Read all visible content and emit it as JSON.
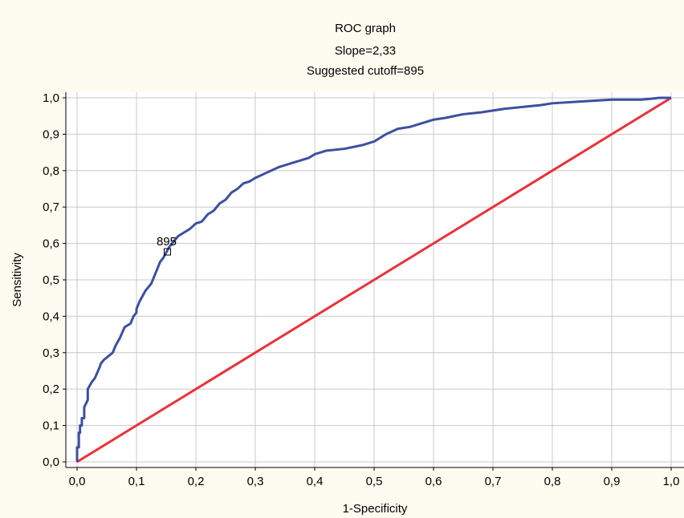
{
  "chart_data": {
    "type": "line",
    "title": "ROC graph",
    "subtitle_lines": [
      "Slope=2,33",
      "Suggested cutoff=895"
    ],
    "xlabel": "1-Specificity",
    "ylabel": "Sensitivity",
    "xlim": [
      0.0,
      1.0
    ],
    "ylim": [
      0.0,
      1.0
    ],
    "x_ticks": [
      "0,0",
      "0,1",
      "0,2",
      "0,3",
      "0,4",
      "0,5",
      "0,6",
      "0,7",
      "0,8",
      "0,9",
      "1,0"
    ],
    "y_ticks": [
      "0,0",
      "0,1",
      "0,2",
      "0,3",
      "0,4",
      "0,5",
      "0,6",
      "0,7",
      "0,8",
      "0,9",
      "1,0"
    ],
    "grid": true,
    "colors": {
      "background": "#fefcf0",
      "plot_area": "#ffffff",
      "grid": "#c8c8c8",
      "roc_curve": "#3c4fa0",
      "reference_line": "#e8323a",
      "marker": "#000000"
    },
    "series": [
      {
        "x": [
          0.0,
          0.0,
          0.003,
          0.003,
          0.005,
          0.005,
          0.008,
          0.008,
          0.012,
          0.012,
          0.018,
          0.018,
          0.025,
          0.03,
          0.038,
          0.04,
          0.045,
          0.06,
          0.065,
          0.072,
          0.08,
          0.09,
          0.095,
          0.1,
          0.1,
          0.105,
          0.115,
          0.125,
          0.13,
          0.135,
          0.14,
          0.145,
          0.15,
          0.155,
          0.16,
          0.165,
          0.17,
          0.18,
          0.19,
          0.2,
          0.21,
          0.22,
          0.23,
          0.24,
          0.25,
          0.26,
          0.27,
          0.28,
          0.29,
          0.3,
          0.32,
          0.34,
          0.36,
          0.38,
          0.39,
          0.4,
          0.41,
          0.42,
          0.45,
          0.48,
          0.5,
          0.52,
          0.54,
          0.56,
          0.58,
          0.6,
          0.62,
          0.65,
          0.68,
          0.7,
          0.72,
          0.75,
          0.78,
          0.8,
          0.85,
          0.9,
          0.95,
          0.97,
          0.98,
          1.0
        ],
        "y": [
          0.0,
          0.04,
          0.04,
          0.08,
          0.08,
          0.1,
          0.1,
          0.12,
          0.12,
          0.15,
          0.17,
          0.2,
          0.22,
          0.23,
          0.26,
          0.27,
          0.28,
          0.3,
          0.32,
          0.34,
          0.37,
          0.38,
          0.4,
          0.41,
          0.42,
          0.44,
          0.47,
          0.49,
          0.51,
          0.53,
          0.55,
          0.56,
          0.575,
          0.59,
          0.6,
          0.61,
          0.62,
          0.63,
          0.64,
          0.655,
          0.66,
          0.68,
          0.69,
          0.71,
          0.72,
          0.74,
          0.75,
          0.765,
          0.77,
          0.78,
          0.795,
          0.81,
          0.82,
          0.83,
          0.835,
          0.845,
          0.85,
          0.855,
          0.86,
          0.87,
          0.88,
          0.9,
          0.915,
          0.92,
          0.93,
          0.94,
          0.945,
          0.955,
          0.96,
          0.965,
          0.97,
          0.975,
          0.98,
          0.985,
          0.99,
          0.995,
          0.995,
          0.998,
          1.0,
          1.0
        ]
      },
      {
        "x": [
          0.0,
          1.0
        ],
        "y": [
          0.0,
          1.0
        ]
      }
    ],
    "annotations": [
      {
        "text": "895",
        "x": 0.152,
        "y": 0.577
      }
    ]
  }
}
